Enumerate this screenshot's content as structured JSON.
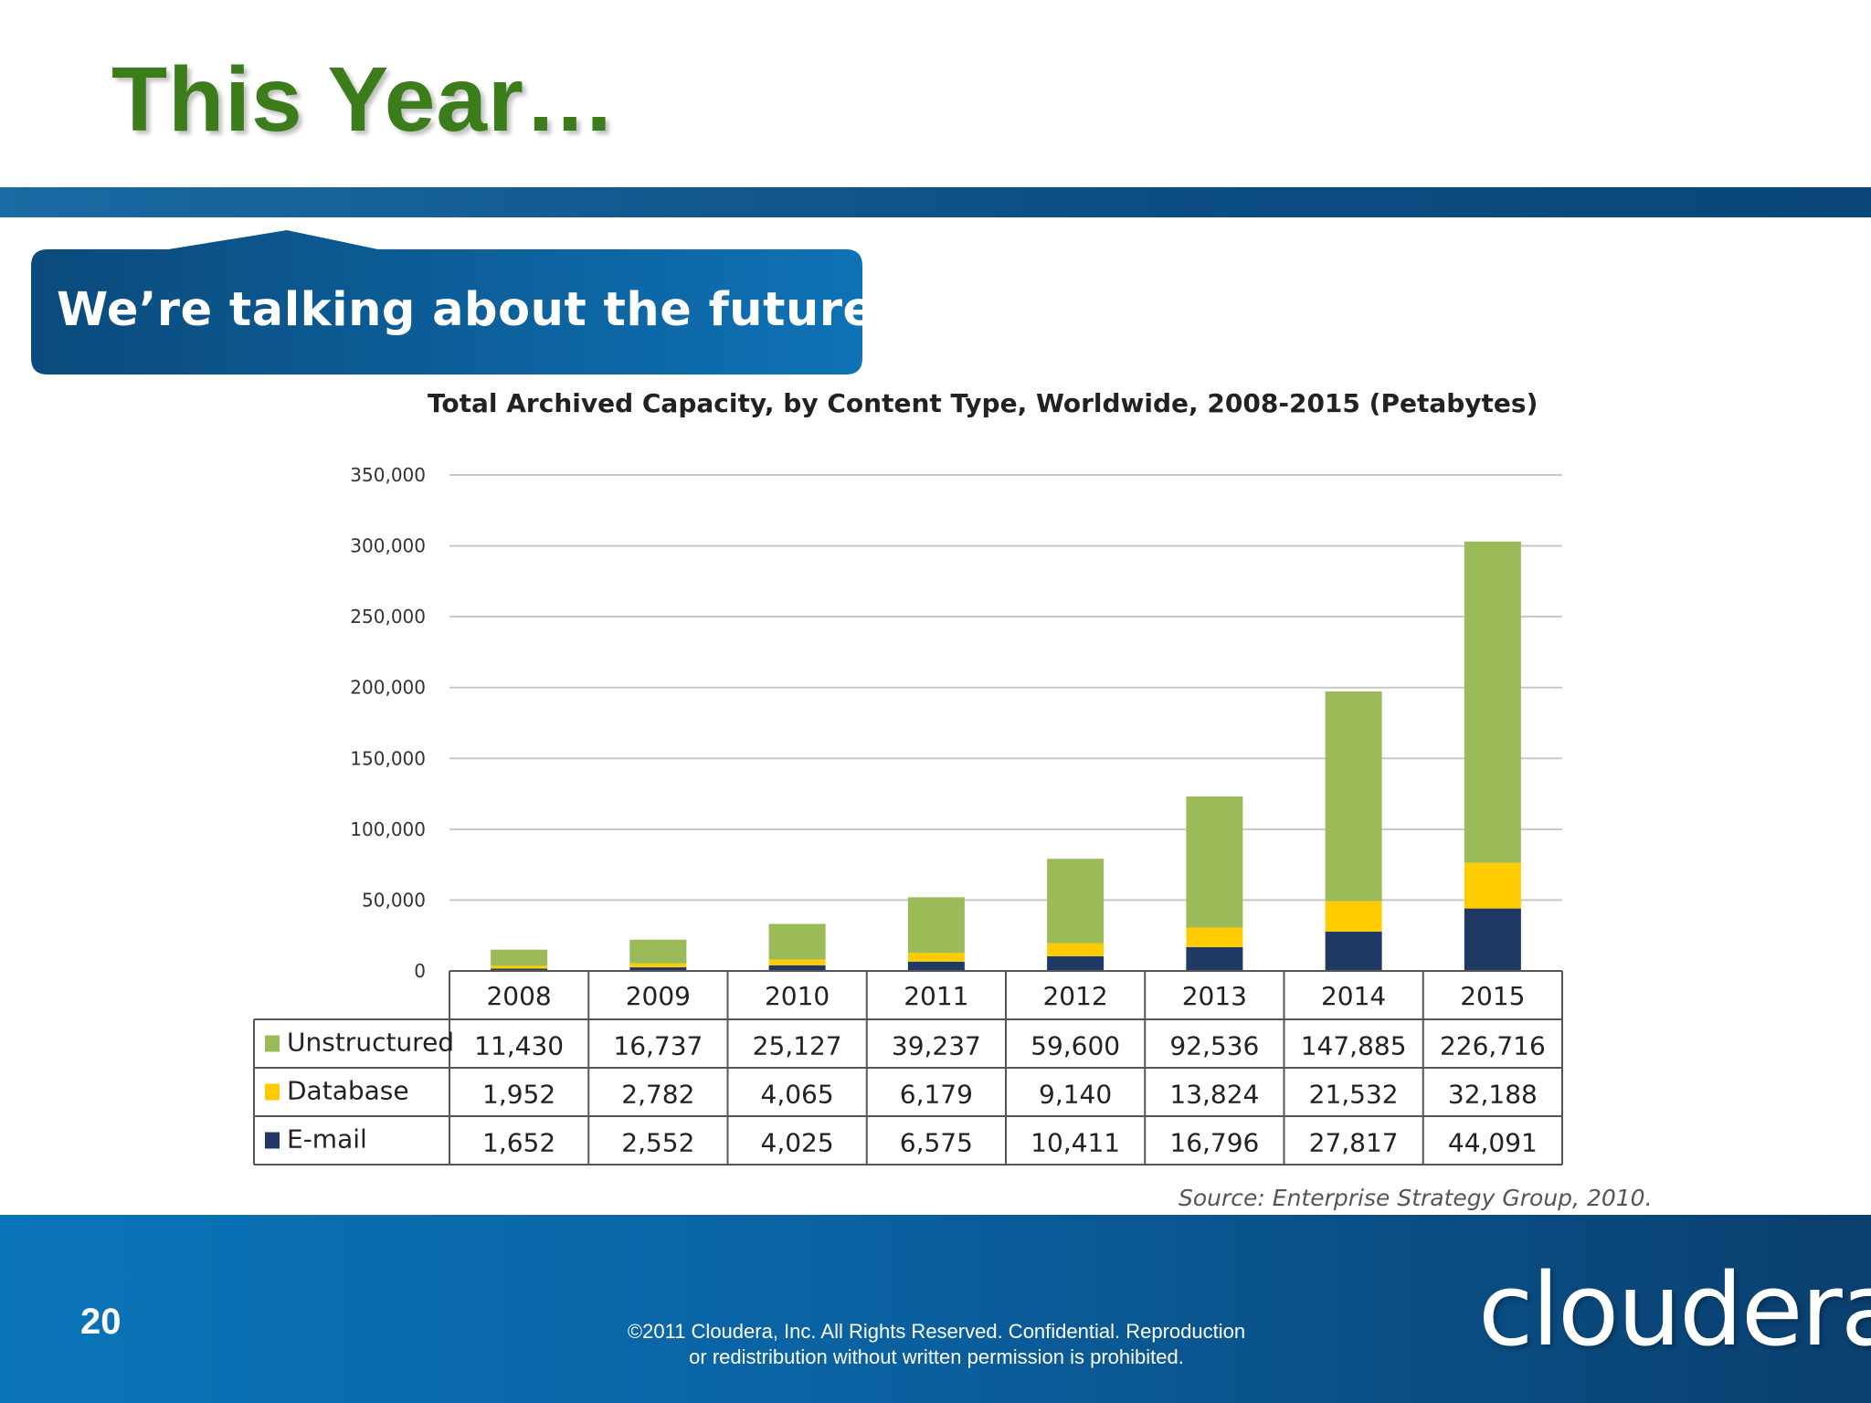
{
  "slide": {
    "title": "This Year…",
    "callout": "We’re talking about the future.",
    "source": "Source: Enterprise Strategy Group, 2010.",
    "page_number": "20",
    "copyright": "©2011 Cloudera, Inc. All Rights Reserved. Confidential. Reproduction or redistribution without written permission is prohibited.",
    "logo": "cloudera"
  },
  "chart_data": {
    "type": "bar",
    "stacked": true,
    "title": "Total Archived Capacity, by Content Type, Worldwide, 2008-2015 (Petabytes)",
    "xlabel": "",
    "ylabel": "",
    "ylim": [
      0,
      350000
    ],
    "yticks": [
      0,
      50000,
      100000,
      150000,
      200000,
      250000,
      300000,
      350000
    ],
    "ytick_labels": [
      "0",
      "50,000",
      "100,000",
      "150,000",
      "200,000",
      "250,000",
      "300,000",
      "350,000"
    ],
    "grid": true,
    "categories": [
      "2008",
      "2009",
      "2010",
      "2011",
      "2012",
      "2013",
      "2014",
      "2015"
    ],
    "series": [
      {
        "name": "E-mail",
        "color": "#1f3864",
        "values": [
          1652,
          2552,
          4025,
          6575,
          10411,
          16796,
          27817,
          44091
        ],
        "labels": [
          "1,652",
          "2,552",
          "4,025",
          "6,575",
          "10,411",
          "16,796",
          "27,817",
          "44,091"
        ]
      },
      {
        "name": "Database",
        "color": "#ffcc00",
        "values": [
          1952,
          2782,
          4065,
          6179,
          9140,
          13824,
          21532,
          32188
        ],
        "labels": [
          "1,952",
          "2,782",
          "4,065",
          "6,179",
          "9,140",
          "13,824",
          "21,532",
          "32,188"
        ]
      },
      {
        "name": "Unstructured",
        "color": "#9bbb59",
        "values": [
          11430,
          16737,
          25127,
          39237,
          59600,
          92536,
          147885,
          226716
        ],
        "labels": [
          "11,430",
          "16,737",
          "25,127",
          "39,237",
          "59,600",
          "92,536",
          "147,885",
          "226,716"
        ]
      }
    ],
    "table_row_order": [
      "Unstructured",
      "Database",
      "E-mail"
    ]
  }
}
